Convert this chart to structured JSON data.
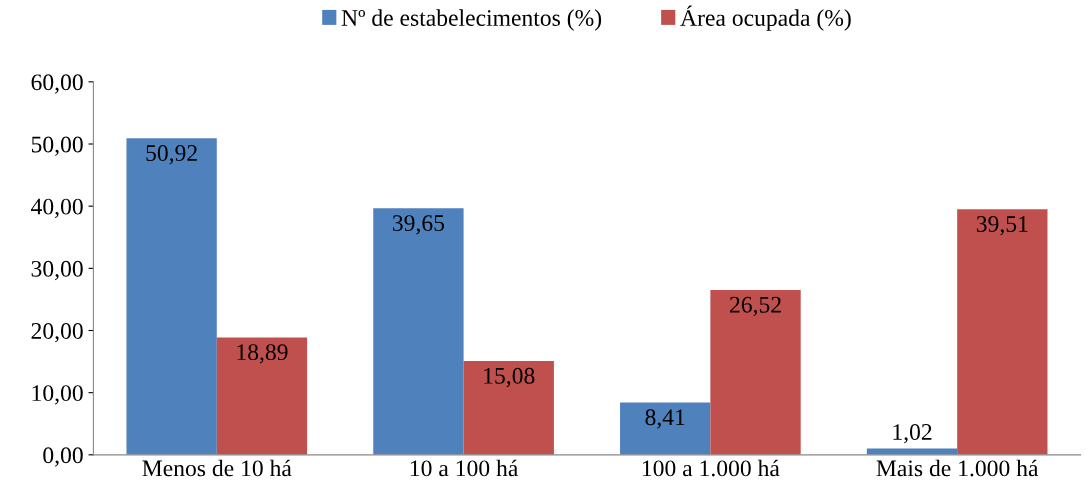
{
  "chart_data": {
    "type": "bar",
    "categories": [
      "Menos de 10 há",
      "10 a 100 há",
      "100 a 1.000 há",
      "Mais de 1.000 há"
    ],
    "series": [
      {
        "name": "Nº de estabelecimentos (%)",
        "color": "#4f81bd",
        "values": [
          50.92,
          39.65,
          8.41,
          1.02
        ],
        "value_labels": [
          "50,92",
          "39,65",
          "8,41",
          "1,02"
        ]
      },
      {
        "name": "Área ocupada (%)",
        "color": "#c0504d",
        "values": [
          18.89,
          15.08,
          26.52,
          39.51
        ],
        "value_labels": [
          "18,89",
          "15,08",
          "26,52",
          "39,51"
        ]
      }
    ],
    "ylim": [
      0,
      60
    ],
    "yticks": [
      {
        "value": 0,
        "label": "0,00"
      },
      {
        "value": 10,
        "label": "10,00"
      },
      {
        "value": 20,
        "label": "20,00"
      },
      {
        "value": 30,
        "label": "30,00"
      },
      {
        "value": 40,
        "label": "40,00"
      },
      {
        "value": 50,
        "label": "50,00"
      },
      {
        "value": 60,
        "label": "60,00"
      }
    ],
    "grid": false,
    "legend": "top"
  }
}
